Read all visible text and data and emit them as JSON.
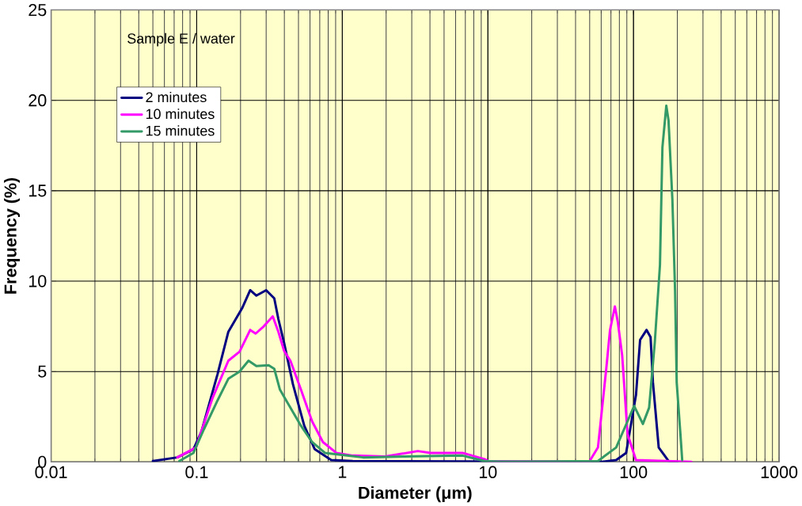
{
  "chart_data": {
    "type": "line",
    "xlabel": "Diameter (μm)",
    "ylabel": "Frequency (%)",
    "annotations": [
      "Sample E / water"
    ],
    "log": "x",
    "grid": true,
    "legend": "top left",
    "marker": "none",
    "line_style": "solid",
    "xlim": [
      0.01,
      1000
    ],
    "xticks": [
      0.01,
      0.1,
      1,
      10,
      100,
      1000
    ],
    "ylim": [
      0,
      25
    ],
    "yticks": [
      0,
      5,
      10,
      15,
      20,
      25
    ],
    "series": [
      {
        "name": "2 minutes",
        "color": "#000080",
        "x": [
          0.05,
          0.0736,
          0.095,
          0.108,
          0.139,
          0.165,
          0.205,
          0.233,
          0.257,
          0.3,
          0.341,
          0.364,
          0.398,
          0.458,
          0.548,
          0.647,
          0.84,
          1.18,
          60,
          76,
          89,
          104,
          111,
          123,
          131,
          136,
          149,
          174,
          200
        ],
        "values": [
          0.05,
          0.25,
          0.7,
          1.7,
          4.85,
          7.2,
          8.5,
          9.5,
          9.2,
          9.5,
          9.05,
          7.9,
          6.6,
          4.3,
          2.0,
          0.7,
          0.1,
          0.05,
          0,
          0.1,
          0.5,
          3.7,
          6.75,
          7.3,
          6.9,
          4.4,
          0.8,
          0.05,
          0
        ]
      },
      {
        "name": "10 minutes",
        "color": "#ff00ff",
        "x": [
          0.0736,
          0.099,
          0.128,
          0.165,
          0.197,
          0.233,
          0.254,
          0.289,
          0.333,
          0.364,
          0.398,
          0.44,
          0.52,
          0.62,
          0.736,
          0.91,
          1.18,
          1.97,
          3.3,
          4.03,
          6.7,
          9.5,
          10.3,
          50,
          57,
          65,
          69,
          74.5,
          78,
          83.6,
          91,
          104,
          250
        ],
        "values": [
          0.25,
          0.8,
          3.5,
          5.6,
          6.1,
          7.3,
          7.1,
          7.5,
          8.05,
          7.2,
          6.15,
          5.6,
          4.0,
          2.25,
          1.1,
          0.5,
          0.35,
          0.3,
          0.6,
          0.5,
          0.5,
          0.15,
          0,
          0.05,
          0.8,
          5.15,
          7.3,
          8.6,
          7.75,
          5.9,
          1.55,
          0.1,
          0
        ]
      },
      {
        "name": "15 minutes",
        "color": "#339966",
        "x": [
          0.076,
          0.095,
          0.112,
          0.139,
          0.165,
          0.197,
          0.227,
          0.257,
          0.312,
          0.341,
          0.373,
          0.44,
          0.52,
          0.62,
          0.76,
          1.08,
          1.39,
          2.66,
          6.7,
          9.5,
          12,
          57,
          76,
          91,
          101,
          116,
          128,
          140,
          152,
          158,
          168,
          174,
          185,
          193,
          198,
          210,
          216
        ],
        "values": [
          0.05,
          0.5,
          1.8,
          3.4,
          4.6,
          5.0,
          5.6,
          5.3,
          5.35,
          5.15,
          4.0,
          3.0,
          2.0,
          1.1,
          0.5,
          0.35,
          0.25,
          0.3,
          0.35,
          0.05,
          0,
          0.05,
          0.8,
          2.25,
          3.1,
          2.1,
          3.0,
          6.6,
          10.9,
          17.4,
          19.7,
          18.9,
          14.5,
          9.5,
          4.4,
          1.55,
          0.1
        ]
      }
    ]
  }
}
